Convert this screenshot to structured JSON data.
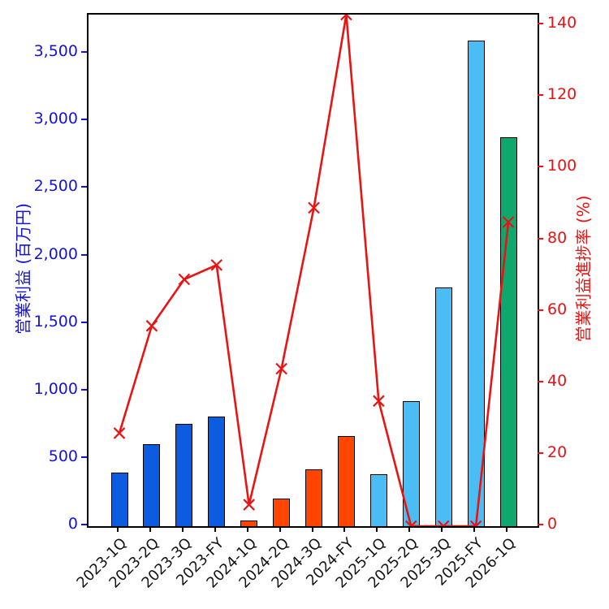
{
  "chart_data": {
    "type": "combo",
    "title": "",
    "categories": [
      "2023-1Q",
      "2023-2Q",
      "2023-3Q",
      "2023-FY",
      "2024-1Q",
      "2024-2Q",
      "2024-3Q",
      "2024-FY",
      "2025-1Q",
      "2025-2Q",
      "2025-3Q",
      "2025-FY",
      "2026-1Q"
    ],
    "series": [
      {
        "name": "営業利益",
        "type": "bar",
        "axis": "left",
        "values": [
          395,
          610,
          760,
          810,
          40,
          205,
          420,
          670,
          385,
          925,
          1770,
          3600,
          2880
        ],
        "bar_colors": [
          "#0d5ce0",
          "#0d5ce0",
          "#0d5ce0",
          "#0d5ce0",
          "#ff4500",
          "#ff4500",
          "#ff4500",
          "#ff4500",
          "#4abdf5",
          "#4abdf5",
          "#4abdf5",
          "#4abdf5",
          "#10a76e"
        ]
      },
      {
        "name": "営業利益進捗率",
        "type": "line",
        "axis": "right",
        "values": [
          26,
          56,
          69,
          73,
          6,
          44,
          89,
          143,
          35,
          0,
          0,
          0,
          85
        ],
        "color": "#e81313",
        "marker": "x"
      }
    ],
    "left_axis": {
      "label": "営業利益 (百万円)",
      "color": "#1512d9",
      "tick_values": [
        0,
        500,
        1000,
        1500,
        2000,
        2500,
        3000,
        3500
      ],
      "tick_labels": [
        "0",
        "500",
        "1,000",
        "1,500",
        "2,000",
        "2,500",
        "3,000",
        "3,500"
      ],
      "min": 0,
      "max": 3790
    },
    "right_axis": {
      "label": "営業利益進捗率 (%)",
      "color": "#e81313",
      "tick_values": [
        0,
        20,
        40,
        60,
        80,
        100,
        120,
        140
      ],
      "tick_labels": [
        "0",
        "20",
        "40",
        "60",
        "80",
        "100",
        "120",
        "140"
      ],
      "min": 0,
      "max": 143
    },
    "x_axis": {
      "tick_label_rotation": 45,
      "tick_label_color": "#141414"
    },
    "grid": false,
    "legend": "none",
    "background": "#ffffff"
  }
}
